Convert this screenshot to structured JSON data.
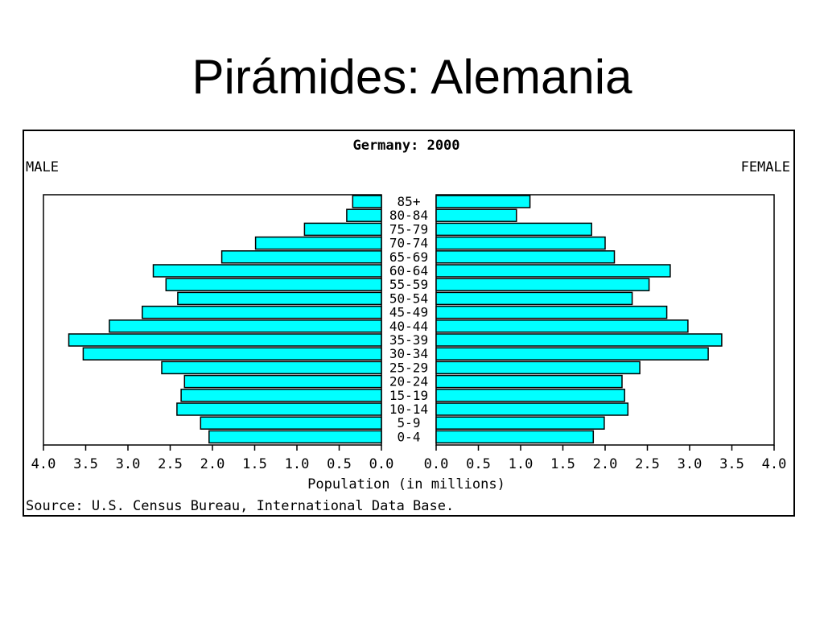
{
  "slide": {
    "title": "Pirámides: Alemania"
  },
  "colors": {
    "bar_fill": "#00ffff",
    "bar_stroke": "#000000",
    "frame": "#000000",
    "background": "#ffffff"
  },
  "chart_data": {
    "type": "bar",
    "orientation": "horizontal",
    "layout": "population-pyramid",
    "title": "Germany: 2000",
    "left_label": "MALE",
    "right_label": "FEMALE",
    "xlabel": "Population (in millions)",
    "source": "Source: U.S. Census Bureau, International Data Base.",
    "xlim": [
      0,
      4.0
    ],
    "ticks": [
      "0.0",
      "0.5",
      "1.0",
      "1.5",
      "2.0",
      "2.5",
      "3.0",
      "3.5",
      "4.0"
    ],
    "categories": [
      "85+",
      "80-84",
      "75-79",
      "70-74",
      "65-69",
      "60-64",
      "55-59",
      "50-54",
      "45-49",
      "40-44",
      "35-39",
      "30-34",
      "25-29",
      "20-24",
      "15-19",
      "10-14",
      "5-9",
      "0-4"
    ],
    "series": [
      {
        "name": "MALE",
        "values": [
          0.34,
          0.41,
          0.91,
          1.49,
          1.89,
          2.7,
          2.55,
          2.41,
          2.83,
          3.22,
          3.7,
          3.53,
          2.6,
          2.33,
          2.37,
          2.42,
          2.14,
          2.04
        ]
      },
      {
        "name": "FEMALE",
        "values": [
          1.11,
          0.95,
          1.84,
          2.0,
          2.11,
          2.77,
          2.52,
          2.32,
          2.73,
          2.98,
          3.38,
          3.22,
          2.41,
          2.2,
          2.23,
          2.27,
          1.99,
          1.86
        ]
      }
    ]
  }
}
